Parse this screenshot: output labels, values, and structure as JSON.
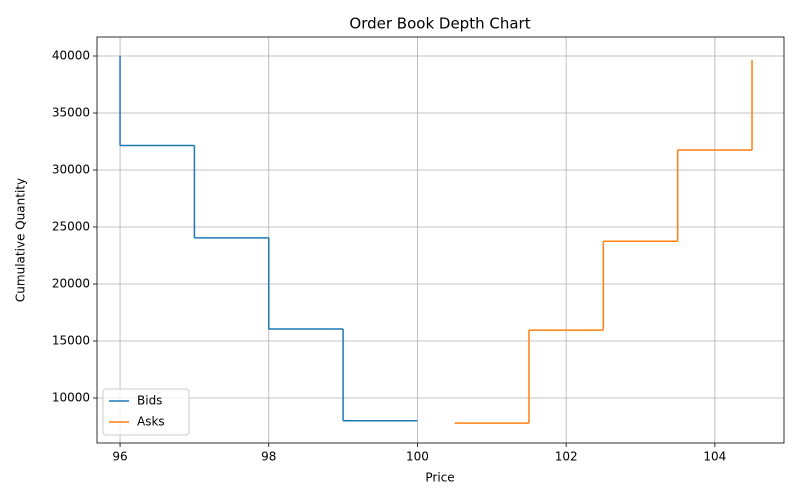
{
  "chart_data": {
    "type": "line",
    "drawstyle": "steps-post",
    "title": "Order Book Depth Chart",
    "x_label": "Price",
    "y_label": "Cumulative Quantity",
    "series": [
      {
        "name": "Bids",
        "color": "#1f77b4",
        "x": [
          100,
          99,
          98,
          97,
          96
        ],
        "values": [
          8000,
          16050,
          24050,
          32150,
          40000
        ]
      },
      {
        "name": "Asks",
        "color": "#ff7f0e",
        "x": [
          100.5,
          101.5,
          102.5,
          103.5,
          104.5
        ],
        "values": [
          7800,
          15950,
          23750,
          31750,
          39650
        ]
      }
    ],
    "xlim": [
      95.69,
      104.93
    ],
    "xticks": [
      96,
      98,
      100,
      102,
      104
    ],
    "ylim": [
      6053,
      41667
    ],
    "yticks": [
      10000,
      15000,
      20000,
      25000,
      30000,
      35000,
      40000
    ],
    "grid": true,
    "legend_position": "lower-left"
  }
}
